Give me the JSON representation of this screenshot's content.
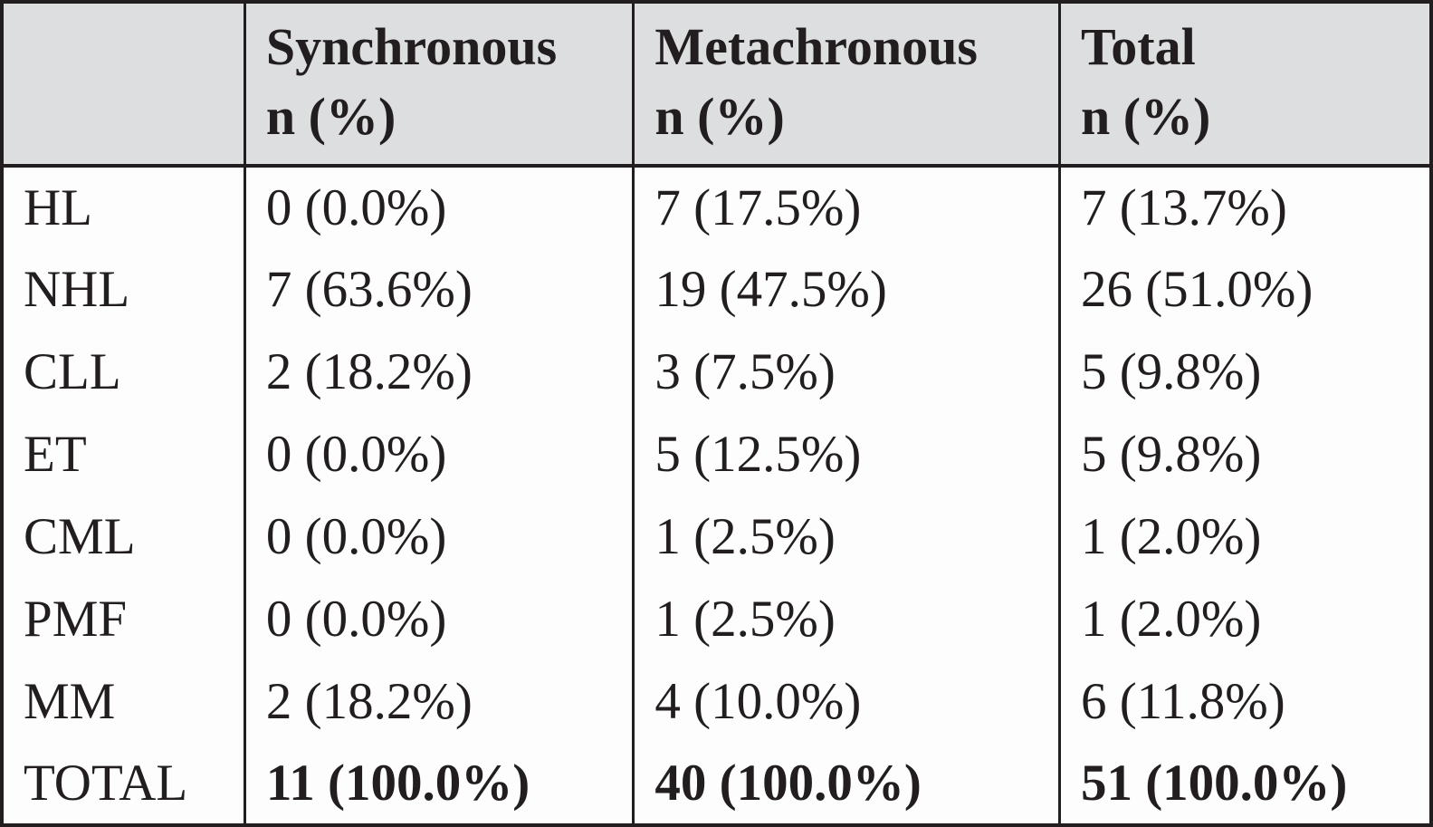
{
  "table": {
    "columns": [
      {
        "label": "",
        "sub": ""
      },
      {
        "label": "Synchronous",
        "sub": "n (%)"
      },
      {
        "label": "Metachronous",
        "sub": "n (%)"
      },
      {
        "label": "Total",
        "sub": "n (%)"
      }
    ],
    "rows": [
      {
        "label": "HL",
        "values": [
          "0 (0.0%)",
          "7 (17.5%)",
          "7 (13.7%)"
        ]
      },
      {
        "label": "NHL",
        "values": [
          "7 (63.6%)",
          "19 (47.5%)",
          "26 (51.0%)"
        ]
      },
      {
        "label": "CLL",
        "values": [
          "2 (18.2%)",
          "3 (7.5%)",
          "5 (9.8%)"
        ]
      },
      {
        "label": "ET",
        "values": [
          "0 (0.0%)",
          "5 (12.5%)",
          "5 (9.8%)"
        ]
      },
      {
        "label": "CML",
        "values": [
          "0 (0.0%)",
          "1 (2.5%)",
          "1 (2.0%)"
        ]
      },
      {
        "label": "PMF",
        "values": [
          "0 (0.0%)",
          "1 (2.5%)",
          "1 (2.0%)"
        ]
      },
      {
        "label": "MM",
        "values": [
          "2 (18.2%)",
          "4 (10.0%)",
          "6 (11.8%)"
        ]
      },
      {
        "label": "TOTAL",
        "values": [
          "11 (100.0%)",
          "40 (100.0%)",
          "51 (100.0%)"
        ]
      }
    ],
    "colors": {
      "header_bg": "#dcdee0",
      "body_bg": "#fdfdfd",
      "border": "#221e1f",
      "text": "#221e1f"
    }
  },
  "chart_data": {
    "type": "table",
    "title": "",
    "categories": [
      "HL",
      "NHL",
      "CLL",
      "ET",
      "CML",
      "PMF",
      "MM",
      "TOTAL"
    ],
    "series": [
      {
        "name": "Synchronous n",
        "values": [
          0,
          7,
          2,
          0,
          0,
          0,
          2,
          11
        ],
        "percents": [
          0.0,
          63.6,
          18.2,
          0.0,
          0.0,
          0.0,
          18.2,
          100.0
        ]
      },
      {
        "name": "Metachronous n",
        "values": [
          7,
          19,
          3,
          5,
          1,
          1,
          4,
          40
        ],
        "percents": [
          17.5,
          47.5,
          7.5,
          12.5,
          2.5,
          2.5,
          10.0,
          100.0
        ]
      },
      {
        "name": "Total n",
        "values": [
          7,
          26,
          5,
          5,
          1,
          1,
          6,
          51
        ],
        "percents": [
          13.7,
          51.0,
          9.8,
          9.8,
          2.0,
          2.0,
          11.8,
          100.0
        ]
      }
    ]
  }
}
